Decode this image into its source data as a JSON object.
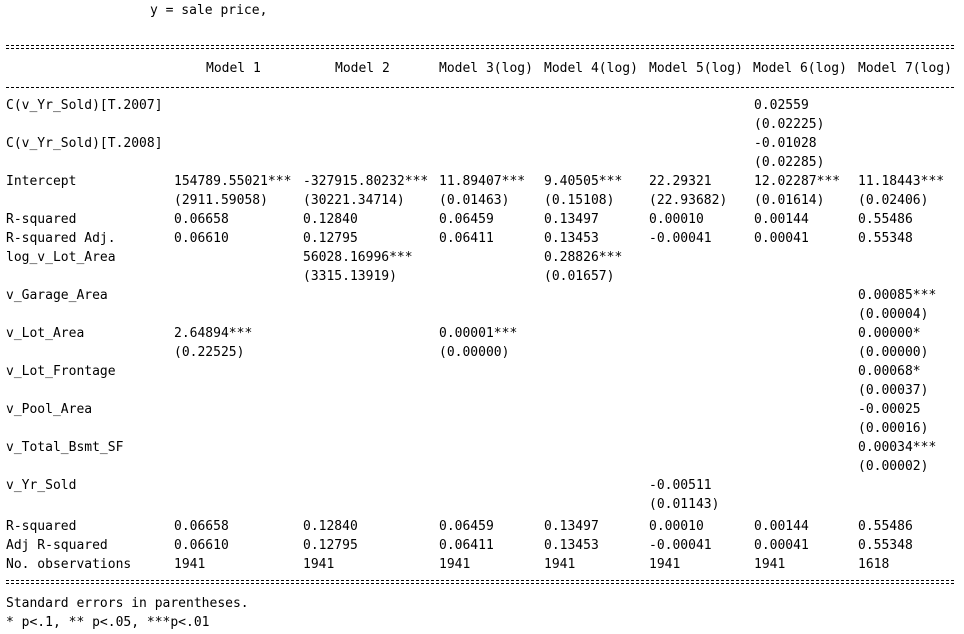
{
  "title_line": "y = sale price,",
  "columns": [
    "Model 1",
    "Model 2",
    "Model 3(log)",
    "Model 4(log)",
    "Model 5(log)",
    "Model 6(log)",
    "Model 7(log)"
  ],
  "rows": [
    {
      "label": "C(v_Yr_Sold)[T.2007]",
      "cells": [
        [
          "",
          ""
        ],
        [
          "",
          ""
        ],
        [
          "",
          ""
        ],
        [
          "",
          ""
        ],
        [
          "",
          ""
        ],
        [
          "0.02559",
          "(0.02225)"
        ],
        [
          "",
          ""
        ]
      ]
    },
    {
      "label": "C(v_Yr_Sold)[T.2008]",
      "cells": [
        [
          "",
          ""
        ],
        [
          "",
          ""
        ],
        [
          "",
          ""
        ],
        [
          "",
          ""
        ],
        [
          "",
          ""
        ],
        [
          "-0.01028",
          "(0.02285)"
        ],
        [
          "",
          ""
        ]
      ]
    },
    {
      "label": "Intercept",
      "cells": [
        [
          "154789.55021***",
          "(2911.59058)"
        ],
        [
          "-327915.80232***",
          "(30221.34714)"
        ],
        [
          "11.89407***",
          "(0.01463)"
        ],
        [
          "9.40505***",
          "(0.15108)"
        ],
        [
          "22.29321",
          "(22.93682)"
        ],
        [
          "12.02287***",
          "(0.01614)"
        ],
        [
          "11.18443***",
          "(0.02406)"
        ]
      ]
    },
    {
      "label": "R-squared",
      "single": true,
      "cells": [
        "0.06658",
        "0.12840",
        "0.06459",
        "0.13497",
        "0.00010",
        "0.00144",
        "0.55486"
      ]
    },
    {
      "label": "R-squared Adj.",
      "single": true,
      "cells": [
        "0.06610",
        "0.12795",
        "0.06411",
        "0.13453",
        "-0.00041",
        "0.00041",
        "0.55348"
      ]
    },
    {
      "label": "log_v_Lot_Area",
      "cells": [
        [
          "",
          ""
        ],
        [
          "56028.16996***",
          "(3315.13919)"
        ],
        [
          "",
          ""
        ],
        [
          "0.28826***",
          "(0.01657)"
        ],
        [
          "",
          ""
        ],
        [
          "",
          ""
        ],
        [
          "",
          ""
        ]
      ]
    },
    {
      "label": "v_Garage_Area",
      "cells": [
        [
          "",
          ""
        ],
        [
          "",
          ""
        ],
        [
          "",
          ""
        ],
        [
          "",
          ""
        ],
        [
          "",
          ""
        ],
        [
          "",
          ""
        ],
        [
          "0.00085***",
          "(0.00004)"
        ]
      ]
    },
    {
      "label": "v_Lot_Area",
      "cells": [
        [
          "2.64894***",
          "(0.22525)"
        ],
        [
          "",
          ""
        ],
        [
          "0.00001***",
          "(0.00000)"
        ],
        [
          "",
          ""
        ],
        [
          "",
          ""
        ],
        [
          "",
          ""
        ],
        [
          "0.00000*",
          "(0.00000)"
        ]
      ]
    },
    {
      "label": "v_Lot_Frontage",
      "cells": [
        [
          "",
          ""
        ],
        [
          "",
          ""
        ],
        [
          "",
          ""
        ],
        [
          "",
          ""
        ],
        [
          "",
          ""
        ],
        [
          "",
          ""
        ],
        [
          "0.00068*",
          "(0.00037)"
        ]
      ]
    },
    {
      "label": "v_Pool_Area",
      "cells": [
        [
          "",
          ""
        ],
        [
          "",
          ""
        ],
        [
          "",
          ""
        ],
        [
          "",
          ""
        ],
        [
          "",
          ""
        ],
        [
          "",
          ""
        ],
        [
          "-0.00025",
          "(0.00016)"
        ]
      ]
    },
    {
      "label": "v_Total_Bsmt_SF",
      "cells": [
        [
          "",
          ""
        ],
        [
          "",
          ""
        ],
        [
          "",
          ""
        ],
        [
          "",
          ""
        ],
        [
          "",
          ""
        ],
        [
          "",
          ""
        ],
        [
          "0.00034***",
          "(0.00002)"
        ]
      ]
    },
    {
      "label": "v_Yr_Sold",
      "cells": [
        [
          "",
          ""
        ],
        [
          "",
          ""
        ],
        [
          "",
          ""
        ],
        [
          "",
          ""
        ],
        [
          "-0.00511",
          "(0.01143)"
        ],
        [
          "",
          ""
        ],
        [
          "",
          ""
        ]
      ]
    }
  ],
  "summary": [
    {
      "label": "R-squared",
      "cells": [
        "0.06658",
        "0.12840",
        "0.06459",
        "0.13497",
        "0.00010",
        "0.00144",
        "0.55486"
      ]
    },
    {
      "label": "Adj R-squared",
      "cells": [
        "0.06610",
        "0.12795",
        "0.06411",
        "0.13453",
        "-0.00041",
        "0.00041",
        "0.55348"
      ]
    },
    {
      "label": "No. observations",
      "cells": [
        "1941",
        "1941",
        "1941",
        "1941",
        "1941",
        "1941",
        "1618"
      ]
    }
  ],
  "footer": [
    "Standard errors in parentheses.",
    "* p<.1, ** p<.05, ***p<.01"
  ]
}
